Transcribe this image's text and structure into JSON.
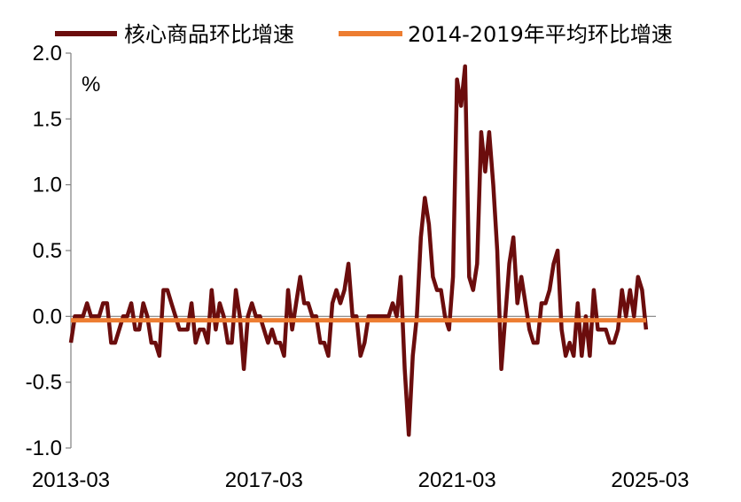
{
  "chart_data": {
    "type": "line",
    "unit": "%",
    "ylim": [
      -1.0,
      2.0
    ],
    "yticks": [
      "2.0",
      "1.5",
      "1.0",
      "0.5",
      "0.0",
      "-0.5",
      "-1.0"
    ],
    "xticks": [
      "2013-03",
      "2017-03",
      "2021-03",
      "2025-03"
    ],
    "x_start": "2013-03",
    "x_end": "2025-04",
    "grid": false,
    "legend_position": "top",
    "series": [
      {
        "name": "核心商品环比增速",
        "color": "#6b0d0d",
        "values": [
          -0.2,
          0.0,
          0.0,
          0.0,
          0.1,
          0.0,
          0.0,
          0.0,
          0.1,
          0.1,
          -0.2,
          -0.2,
          -0.1,
          0.0,
          0.0,
          0.1,
          -0.1,
          -0.1,
          0.1,
          0.0,
          -0.2,
          -0.2,
          -0.3,
          0.2,
          0.2,
          0.1,
          0.0,
          -0.1,
          -0.1,
          -0.1,
          0.1,
          -0.2,
          -0.1,
          -0.1,
          -0.2,
          0.2,
          -0.1,
          0.1,
          0.0,
          -0.2,
          -0.2,
          0.2,
          0.0,
          -0.4,
          0.0,
          0.1,
          0.0,
          0.0,
          -0.1,
          -0.2,
          -0.1,
          -0.2,
          -0.2,
          -0.3,
          0.2,
          -0.1,
          0.1,
          0.3,
          0.1,
          0.1,
          0.0,
          0.0,
          -0.2,
          -0.2,
          -0.3,
          0.1,
          0.2,
          0.1,
          0.2,
          0.4,
          0.0,
          0.0,
          -0.3,
          -0.2,
          0.0,
          0.0,
          0.0,
          0.0,
          0.0,
          0.0,
          0.1,
          0.0,
          0.3,
          -0.4,
          -0.9,
          -0.3,
          0.0,
          0.6,
          0.9,
          0.7,
          0.3,
          0.2,
          0.2,
          0.0,
          -0.1,
          0.3,
          1.8,
          1.6,
          1.9,
          0.3,
          0.2,
          0.4,
          1.4,
          1.1,
          1.4,
          1.0,
          0.5,
          -0.4,
          0.0,
          0.4,
          0.6,
          0.1,
          0.3,
          0.1,
          -0.1,
          -0.2,
          -0.2,
          0.1,
          0.1,
          0.2,
          0.4,
          0.5,
          -0.1,
          -0.3,
          -0.2,
          -0.3,
          0.1,
          -0.3,
          0.0,
          -0.3,
          0.2,
          -0.1,
          -0.1,
          -0.1,
          -0.2,
          -0.2,
          -0.1,
          0.2,
          0.0,
          0.2,
          0.0,
          0.3,
          0.2,
          -0.1
        ]
      },
      {
        "name": "2014-2019年平均环比增速",
        "color": "#ed7d31",
        "values": [
          -0.03
        ]
      }
    ]
  }
}
